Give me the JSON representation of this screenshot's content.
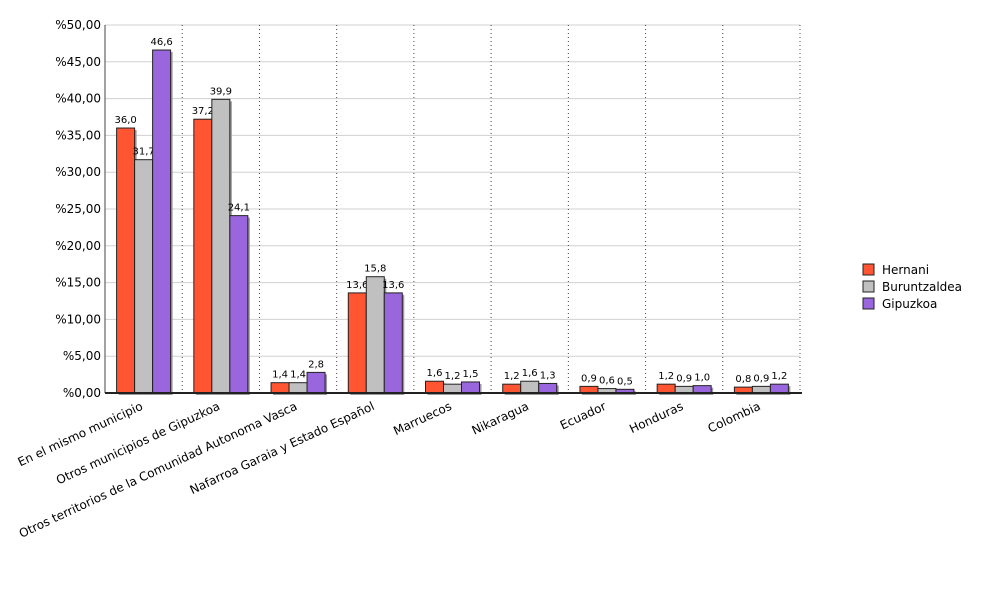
{
  "chart_data": {
    "type": "bar",
    "categories": [
      "En el mismo municipio",
      "Otros municipios de Gipuzkoa",
      "Otros territorios de la Comunidad Autonoma Vasca",
      "Nafarroa Garaia y Estado Español",
      "Marruecos",
      "Nikaragua",
      "Ecuador",
      "Honduras",
      "Colombia"
    ],
    "series": [
      {
        "name": "Hernani",
        "color": "#ff5533",
        "values": [
          36.0,
          37.2,
          1.4,
          13.6,
          1.6,
          1.2,
          0.9,
          1.2,
          0.8
        ],
        "value_labels": [
          "36,0",
          "37,2",
          "1,4",
          "13,6",
          "1,6",
          "1,2",
          "0,9",
          "1,2",
          "0,8"
        ]
      },
      {
        "name": "Buruntzaldea",
        "color": "#c0c0c0",
        "values": [
          31.7,
          39.9,
          1.4,
          15.8,
          1.2,
          1.6,
          0.6,
          0.9,
          0.9
        ],
        "value_labels": [
          "31,7",
          "39,9",
          "1,4",
          "15,8",
          "1,2",
          "1,6",
          "0,6",
          "0,9",
          "0,9"
        ]
      },
      {
        "name": "Gipuzkoa",
        "color": "#9966dd",
        "values": [
          46.6,
          24.1,
          2.8,
          13.6,
          1.5,
          1.3,
          0.5,
          1.0,
          1.2
        ],
        "value_labels": [
          "46,6",
          "24,1",
          "2,8",
          "13,6",
          "1,5",
          "1,3",
          "0,5",
          "1,0",
          "1,2"
        ]
      }
    ],
    "ylim": [
      0,
      50
    ],
    "yticks": [
      {
        "value": 0,
        "label": "%0,00"
      },
      {
        "value": 5,
        "label": "%5,00"
      },
      {
        "value": 10,
        "label": "%10,00"
      },
      {
        "value": 15,
        "label": "%15,00"
      },
      {
        "value": 20,
        "label": "%20,00"
      },
      {
        "value": 25,
        "label": "%25,00"
      },
      {
        "value": 30,
        "label": "%30,00"
      },
      {
        "value": 35,
        "label": "%35,00"
      },
      {
        "value": 40,
        "label": "%40,00"
      },
      {
        "value": 45,
        "label": "%45,00"
      },
      {
        "value": 50,
        "label": "%50,00"
      }
    ],
    "grid": true,
    "legend": "right"
  }
}
